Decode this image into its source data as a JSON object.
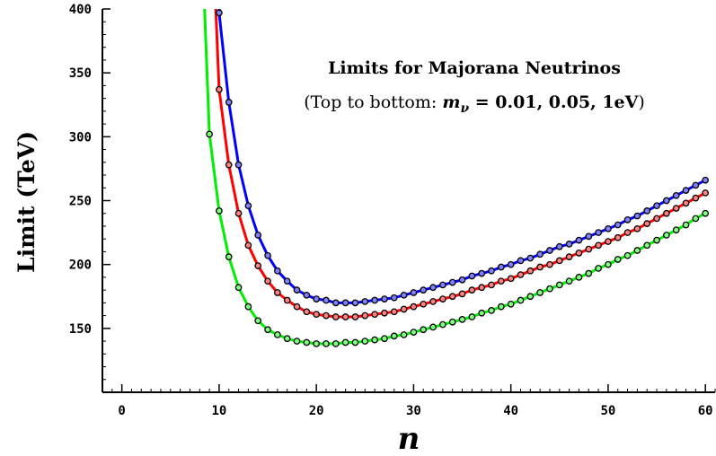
{
  "chart_data": {
    "type": "line",
    "title": "Limits for Majorana Neutrinos",
    "subtitle": {
      "prefix": "(Top to bottom: ",
      "symbol": "m",
      "subscript": "ν",
      "values": " = 0.01, 0.05, 1eV",
      "suffix": ")"
    },
    "xlabel": "n",
    "ylabel": "Limit (TeV)",
    "xlim": [
      -2,
      61
    ],
    "ylim": [
      100,
      400
    ],
    "xticks": [
      0,
      10,
      20,
      30,
      40,
      50,
      60
    ],
    "yticks": [
      150,
      200,
      250,
      300,
      350,
      400
    ],
    "grid": false,
    "legend": "none",
    "series": [
      {
        "color": "#0000ff",
        "marker_fill": "#8080ff",
        "x": [
          10,
          11,
          12,
          13,
          14,
          15,
          16,
          17,
          18,
          19,
          20,
          21,
          22,
          23,
          24,
          25,
          26,
          27,
          28,
          29,
          30,
          31,
          32,
          33,
          34,
          35,
          36,
          37,
          38,
          39,
          40,
          41,
          42,
          43,
          44,
          45,
          46,
          47,
          48,
          49,
          50,
          51,
          52,
          53,
          54,
          55,
          56,
          57,
          58,
          59,
          60
        ],
        "y": [
          397,
          327,
          278,
          246,
          223,
          207,
          195,
          187,
          180,
          176,
          173,
          172,
          170,
          170,
          170,
          171,
          172,
          173,
          174,
          176,
          178,
          180,
          182,
          184,
          186,
          188,
          191,
          193,
          195,
          198,
          200,
          203,
          205,
          208,
          211,
          214,
          216,
          219,
          222,
          225,
          228,
          231,
          235,
          238,
          242,
          246,
          250,
          254,
          258,
          262,
          266
        ]
      },
      {
        "color": "#ff0000",
        "marker_fill": "#ff8080",
        "x": [
          10,
          11,
          12,
          13,
          14,
          15,
          16,
          17,
          18,
          19,
          20,
          21,
          22,
          23,
          24,
          25,
          26,
          27,
          28,
          29,
          30,
          31,
          32,
          33,
          34,
          35,
          36,
          37,
          38,
          39,
          40,
          41,
          42,
          43,
          44,
          45,
          46,
          47,
          48,
          49,
          50,
          51,
          52,
          53,
          54,
          55,
          56,
          57,
          58,
          59,
          60
        ],
        "y": [
          337,
          278,
          240,
          215,
          199,
          187,
          178,
          172,
          167,
          163,
          161,
          160,
          159,
          159,
          159,
          160,
          161,
          162,
          163,
          165,
          167,
          169,
          171,
          173,
          175,
          177,
          180,
          182,
          184,
          187,
          189,
          192,
          195,
          198,
          200,
          203,
          206,
          209,
          212,
          215,
          218,
          221,
          225,
          228,
          232,
          236,
          240,
          244,
          248,
          252,
          256
        ]
      },
      {
        "color": "#00ee00",
        "marker_fill": "#80ff80",
        "x": [
          9,
          10,
          11,
          12,
          13,
          14,
          15,
          16,
          17,
          18,
          19,
          20,
          21,
          22,
          23,
          24,
          25,
          26,
          27,
          28,
          29,
          30,
          31,
          32,
          33,
          34,
          35,
          36,
          37,
          38,
          39,
          40,
          41,
          42,
          43,
          44,
          45,
          46,
          47,
          48,
          49,
          50,
          51,
          52,
          53,
          54,
          55,
          56,
          57,
          58,
          59,
          60
        ],
        "y": [
          302,
          242,
          206,
          182,
          167,
          156,
          149,
          145,
          142,
          140,
          139,
          138,
          138,
          138,
          139,
          139,
          140,
          141,
          142,
          144,
          145,
          147,
          149,
          151,
          153,
          155,
          157,
          159,
          162,
          164,
          167,
          169,
          172,
          175,
          178,
          181,
          184,
          187,
          190,
          193,
          197,
          200,
          204,
          207,
          211,
          215,
          219,
          223,
          227,
          231,
          236,
          240
        ]
      }
    ]
  }
}
